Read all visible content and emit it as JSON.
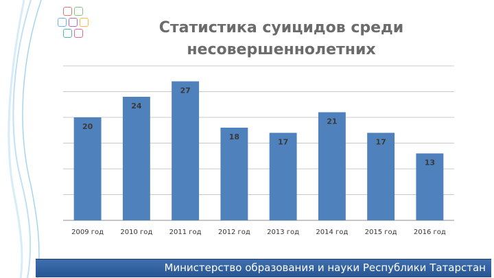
{
  "slide": {
    "title_line1": "Статистика суицидов среди",
    "title_line2": "несовершеннолетних",
    "footer": "Министерство образования и науки Республики Татарстан"
  },
  "logo": {
    "icon": "colorful-tiles-logo"
  },
  "chart_data": {
    "type": "bar",
    "categories": [
      "2009 год",
      "2010 год",
      "2011 год",
      "2012 год",
      "2013 год",
      "2014 год",
      "2015 год",
      "2016 год"
    ],
    "values": [
      20,
      24,
      27,
      18,
      17,
      21,
      17,
      13
    ],
    "ylim": [
      0,
      30
    ],
    "grid": true,
    "bar_color": "#4f81bd"
  }
}
